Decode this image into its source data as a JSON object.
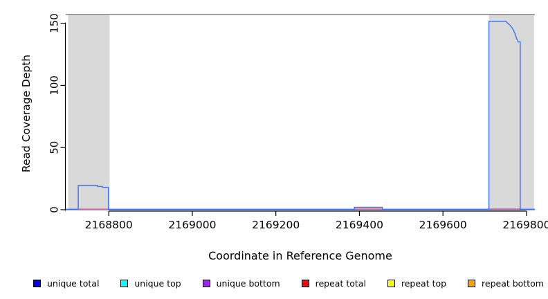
{
  "chart_data": {
    "type": "line",
    "title": "",
    "xlabel": "Coordinate in Reference Genome",
    "ylabel": "Read Coverage Depth",
    "xlim": [
      2168697,
      2169820
    ],
    "ylim": [
      0,
      157
    ],
    "xticks": [
      2168800,
      2169000,
      2169200,
      2169400,
      2169600,
      2169800
    ],
    "yticks": [
      0,
      50,
      100,
      150
    ],
    "grid": false,
    "legend_position": "bottom",
    "axis_color": "#000000",
    "shaded_regions": [
      {
        "x0": 2168703,
        "x1": 2168802,
        "color": "#d9d9d9"
      },
      {
        "x0": 2169710,
        "x1": 2169818,
        "color": "#d9d9d9"
      }
    ],
    "top_boundary_line": {
      "y": 157,
      "color": "#808080"
    },
    "series": [
      {
        "name": "unique top",
        "legend_color": "#00FFFF",
        "line_color": "#00FFFF",
        "points": [
          [
            2168697,
            0
          ],
          [
            2169820,
            0
          ]
        ]
      },
      {
        "name": "repeat top",
        "legend_color": "#FFFF00",
        "line_color": "#FFFF00",
        "points": [
          [
            2168697,
            0
          ],
          [
            2169820,
            0
          ]
        ]
      },
      {
        "name": "repeat bottom",
        "legend_color": "#FFA500",
        "line_color": "#FFA500",
        "points": [
          [
            2168697,
            0
          ],
          [
            2169820,
            0
          ]
        ]
      },
      {
        "name": "unique bottom",
        "legend_color": "#A020F0",
        "line_color": "#8A68EC",
        "points": [
          [
            2168697,
            0
          ],
          [
            2169820,
            0
          ]
        ]
      },
      {
        "name": "repeat total",
        "legend_color": "#FF0000",
        "line_color": "#FF7080",
        "points": [
          [
            2168697,
            0
          ],
          [
            2168727,
            0
          ],
          [
            2168727,
            0.6
          ],
          [
            2168799,
            0.6
          ],
          [
            2168799,
            0
          ],
          [
            2169388,
            0
          ],
          [
            2169388,
            1
          ],
          [
            2169455,
            1
          ],
          [
            2169455,
            0
          ],
          [
            2169710,
            0
          ],
          [
            2169710,
            0.7
          ],
          [
            2169786,
            0.7
          ],
          [
            2169786,
            0
          ],
          [
            2169820,
            0
          ]
        ]
      },
      {
        "name": "unique total",
        "legend_color": "#0000FF",
        "line_color": "#3D6FF2",
        "points": [
          [
            2168697,
            0.4
          ],
          [
            2168727,
            0.4
          ],
          [
            2168727,
            19.5
          ],
          [
            2168773,
            19.5
          ],
          [
            2168773,
            18.7
          ],
          [
            2168785,
            18.7
          ],
          [
            2168785,
            18
          ],
          [
            2168799,
            18
          ],
          [
            2168799,
            0.4
          ],
          [
            2169388,
            0.4
          ],
          [
            2169388,
            2
          ],
          [
            2169455,
            2
          ],
          [
            2169455,
            0.4
          ],
          [
            2169710,
            0.4
          ],
          [
            2169710,
            151.5
          ],
          [
            2169751,
            151.5
          ],
          [
            2169755,
            150
          ],
          [
            2169760,
            148.6
          ],
          [
            2169764,
            147
          ],
          [
            2169768,
            145
          ],
          [
            2169772,
            142
          ],
          [
            2169776,
            138
          ],
          [
            2169780,
            135
          ],
          [
            2169785,
            135
          ],
          [
            2169785,
            0.4
          ],
          [
            2169820,
            0.4
          ]
        ]
      }
    ]
  },
  "legend": {
    "items": [
      {
        "label": "unique total",
        "color": "#0000FF"
      },
      {
        "label": "unique top",
        "color": "#00FFFF"
      },
      {
        "label": "unique bottom",
        "color": "#A020F0"
      },
      {
        "label": "repeat total",
        "color": "#FF0000"
      },
      {
        "label": "repeat top",
        "color": "#FFFF00"
      },
      {
        "label": "repeat bottom",
        "color": "#FFA500"
      }
    ]
  }
}
